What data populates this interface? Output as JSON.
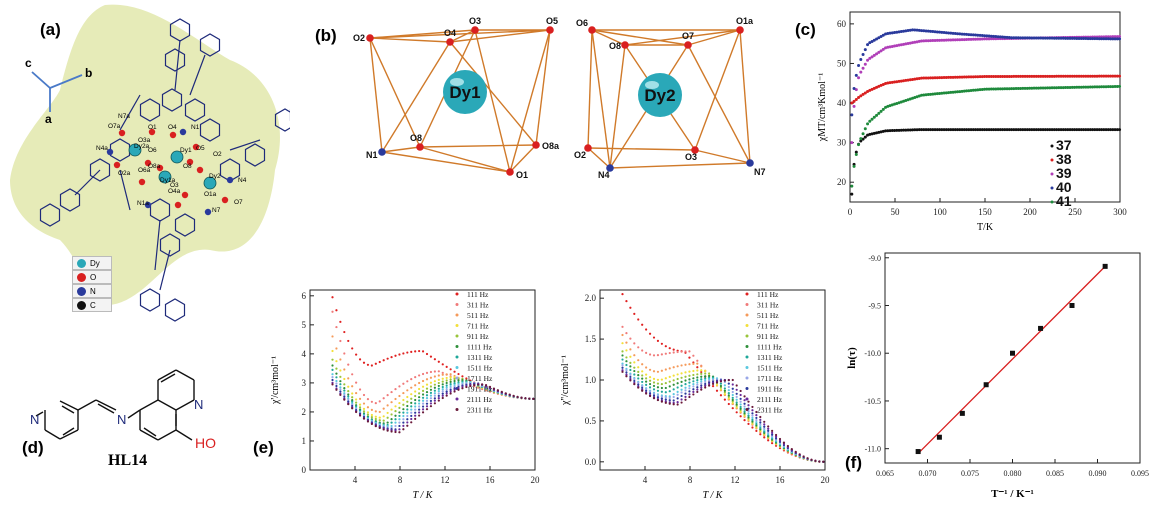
{
  "colors": {
    "dy": "#2aa8b8",
    "o": "#d92020",
    "n": "#2a3a9c",
    "c": "#111111",
    "edge": "#d07a2a",
    "blob": "#e6ebb8",
    "bond": "#1e2a7a",
    "fit": "#d92020"
  },
  "panel_a": {
    "label": "(a)",
    "axes": {
      "a": "a",
      "b": "b",
      "c": "c"
    },
    "legend": [
      {
        "sym": "Dy",
        "color": "#2aa8b8"
      },
      {
        "sym": "O",
        "color": "#d92020"
      },
      {
        "sym": "N",
        "color": "#2a3a9c"
      },
      {
        "sym": "C",
        "color": "#111111"
      }
    ],
    "atom_labels": [
      "N7a",
      "O7a",
      "O1",
      "O4",
      "N1",
      "N4a",
      "Dy1",
      "O3a",
      "O5",
      "O6",
      "Dy2",
      "O8a",
      "O2a",
      "O4a",
      "O6a",
      "O2",
      "O8",
      "O1a",
      "N4",
      "N1a",
      "N7",
      "O7",
      "Dy2a",
      "O3",
      "Dy1a"
    ]
  },
  "panel_b": {
    "label": "(b)",
    "left": {
      "center": "Dy1",
      "atoms": [
        "O2",
        "O4",
        "O3",
        "O5",
        "N1",
        "O8",
        "O8a",
        "O1"
      ]
    },
    "right": {
      "center": "Dy2",
      "atoms": [
        "O6",
        "O8",
        "O7",
        "O1a",
        "O2",
        "N4",
        "O3",
        "N7"
      ]
    }
  },
  "panel_c": {
    "label": "(c)",
    "chart_data": {
      "type": "scatter",
      "xlabel": "T/K",
      "ylabel": "χMT/cm³Kmol⁻¹",
      "xlim": [
        0,
        300
      ],
      "ylim": [
        15,
        63
      ],
      "xticks": [
        "0",
        "50",
        "100",
        "150",
        "200",
        "250",
        "300"
      ],
      "yticks": [
        "20",
        "30",
        "40",
        "50",
        "60"
      ],
      "series": [
        {
          "name": "37",
          "color": "#111111",
          "points": [
            [
              2,
              17
            ],
            [
              5,
              26
            ],
            [
              10,
              30
            ],
            [
              20,
              32
            ],
            [
              40,
              33
            ],
            [
              80,
              33.3
            ],
            [
              150,
              33.3
            ],
            [
              300,
              33.3
            ]
          ]
        },
        {
          "name": "38",
          "color": "#d92020",
          "points": [
            [
              2,
              40
            ],
            [
              5,
              40.5
            ],
            [
              10,
              41.5
            ],
            [
              20,
              43
            ],
            [
              40,
              45
            ],
            [
              80,
              46.3
            ],
            [
              150,
              46.7
            ],
            [
              300,
              46.8
            ]
          ]
        },
        {
          "name": "39",
          "color": "#b03fb8",
          "points": [
            [
              2,
              30
            ],
            [
              5,
              41
            ],
            [
              10,
              47
            ],
            [
              20,
              51
            ],
            [
              40,
              54
            ],
            [
              80,
              55.7
            ],
            [
              150,
              56.2
            ],
            [
              300,
              56.8
            ]
          ]
        },
        {
          "name": "40",
          "color": "#2a3a9c",
          "points": [
            [
              2,
              37
            ],
            [
              5,
              45
            ],
            [
              10,
              50
            ],
            [
              20,
              55
            ],
            [
              40,
              57.5
            ],
            [
              70,
              58.5
            ],
            [
              120,
              57.5
            ],
            [
              180,
              56.5
            ],
            [
              300,
              56.2
            ]
          ]
        },
        {
          "name": "41",
          "color": "#1f8a3c",
          "points": [
            [
              2,
              19
            ],
            [
              5,
              25
            ],
            [
              10,
              30
            ],
            [
              20,
              35
            ],
            [
              40,
              39
            ],
            [
              80,
              42
            ],
            [
              150,
              43.5
            ],
            [
              300,
              44.2
            ]
          ]
        }
      ]
    }
  },
  "panel_d": {
    "label": "(d)",
    "caption": "HL14",
    "atoms": {
      "n1": "N",
      "n2": "N",
      "n3": "N",
      "oh": "HO"
    }
  },
  "panel_e": {
    "label": "(e)",
    "chart_data": [
      {
        "type": "line",
        "xlabel": "T / K",
        "ylabel": "χ'/cm³mol⁻¹",
        "xlim": [
          0,
          20
        ],
        "ylim": [
          0,
          6.2
        ],
        "xticks": [
          "4",
          "8",
          "12",
          "16",
          "20"
        ],
        "yticks": [
          "0",
          "1",
          "2",
          "3",
          "4",
          "5",
          "6"
        ],
        "legend": [
          "111 Hz",
          "311 Hz",
          "511 Hz",
          "711 Hz",
          "911 Hz",
          "1111 Hz",
          "1311 Hz",
          "1511 Hz",
          "1711 Hz",
          "1911 Hz",
          "2111 Hz",
          "2311 Hz"
        ],
        "series_colors": [
          "#e02020",
          "#f07a7a",
          "#f59a5a",
          "#f3e03a",
          "#9ac43a",
          "#2f8f3a",
          "#1fa89a",
          "#5ac8e0",
          "#9aa8e8",
          "#2a3a9c",
          "#6a2a9c",
          "#6a1a3a"
        ],
        "start_values": [
          5.95,
          5.45,
          4.6,
          4.1,
          3.8,
          3.6,
          3.45,
          3.3,
          3.2,
          3.1,
          3.0,
          2.95
        ],
        "min_values": [
          3.6,
          2.3,
          2.0,
          1.8,
          1.7,
          1.6,
          1.55,
          1.5,
          1.45,
          1.4,
          1.35,
          1.3
        ],
        "min_T": [
          5.5,
          6,
          6.2,
          6.4,
          6.6,
          6.8,
          7,
          7.2,
          7.4,
          7.6,
          7.8,
          8
        ],
        "peak_values": [
          4.1,
          3.4,
          3.3,
          3.2,
          3.15,
          3.1,
          3.05,
          3.02,
          3.0,
          2.98,
          2.96,
          2.95
        ],
        "peak_T": [
          10,
          11.5,
          12.5,
          13,
          13.5,
          13.8,
          14.1,
          14.4,
          14.7,
          15,
          15.2,
          15.5
        ],
        "end_value": 2.45
      },
      {
        "type": "line",
        "xlabel": "T / K",
        "ylabel": "χ''/cm³mol⁻¹",
        "xlim": [
          0,
          20
        ],
        "ylim": [
          -0.1,
          2.1
        ],
        "xticks": [
          "4",
          "8",
          "12",
          "16",
          "20"
        ],
        "yticks": [
          "0.0",
          "0.5",
          "1.0",
          "1.5",
          "2.0"
        ],
        "legend": [
          "111 Hz",
          "311 Hz",
          "511 Hz",
          "711 Hz",
          "911 Hz",
          "1111 Hz",
          "1311 Hz",
          "1511 Hz",
          "1711 Hz",
          "1911 Hz",
          "2111 Hz",
          "2311 Hz"
        ],
        "series_colors": [
          "#e02020",
          "#f07a7a",
          "#f59a5a",
          "#f3e03a",
          "#9ac43a",
          "#2f8f3a",
          "#1fa89a",
          "#5ac8e0",
          "#9aa8e8",
          "#2a3a9c",
          "#6a2a9c",
          "#6a1a3a"
        ],
        "start_values": [
          2.05,
          1.65,
          1.55,
          1.45,
          1.35,
          1.3,
          1.25,
          1.2,
          1.18,
          1.15,
          1.12,
          1.1
        ],
        "min_values": [
          1.35,
          1.3,
          1.1,
          1.0,
          0.95,
          0.9,
          0.85,
          0.8,
          0.78,
          0.75,
          0.72,
          0.7
        ],
        "min_T": [
          7.5,
          5,
          5.2,
          5.4,
          5.6,
          5.8,
          6,
          6.2,
          6.4,
          6.6,
          6.8,
          7
        ],
        "peak_values": [
          1.35,
          1.35,
          1.2,
          1.12,
          1.08,
          1.05,
          1.03,
          1.02,
          1.01,
          1.0,
          1.0,
          1.0
        ],
        "peak_T": [
          7.5,
          8,
          8.8,
          9.3,
          9.7,
          10,
          10.3,
          10.6,
          10.9,
          11.2,
          11.5,
          11.8
        ],
        "end_value": 0.0
      }
    ]
  },
  "panel_f": {
    "label": "(f)",
    "chart_data": {
      "type": "scatter",
      "xlabel": "T⁻¹ / K⁻¹",
      "ylabel": "ln(τ)",
      "xlim": [
        0.065,
        0.095
      ],
      "ylim": [
        -11.15,
        -8.95
      ],
      "xticks": [
        "0.065",
        "0.070",
        "0.075",
        "0.080",
        "0.085",
        "0.090",
        "0.095"
      ],
      "yticks": [
        "-11.0",
        "-10.5",
        "-10.0",
        "-9.5",
        "-9.0"
      ],
      "points": [
        [
          0.0689,
          -11.03
        ],
        [
          0.0714,
          -10.88
        ],
        [
          0.0741,
          -10.63
        ],
        [
          0.0769,
          -10.33
        ],
        [
          0.08,
          -10.0
        ],
        [
          0.0833,
          -9.74
        ],
        [
          0.087,
          -9.5
        ],
        [
          0.0909,
          -9.09
        ]
      ],
      "fit": [
        [
          0.0689,
          -11.05
        ],
        [
          0.0909,
          -9.09
        ]
      ]
    }
  }
}
